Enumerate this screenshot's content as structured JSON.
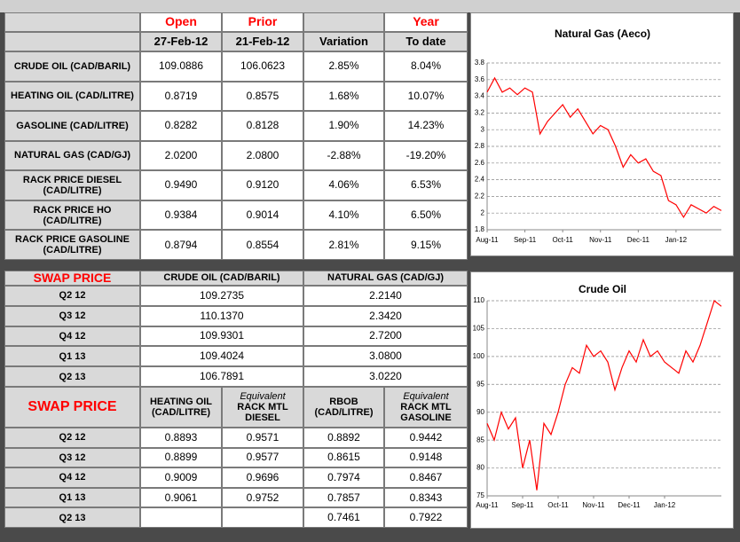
{
  "table": {
    "head_top": {
      "open": "Open",
      "prior": "Prior",
      "year": "Year"
    },
    "head_bottom": {
      "open": "27-Feb-12",
      "prior": "21-Feb-12",
      "variation": "Variation",
      "year": "To date"
    },
    "rows": [
      [
        "CRUDE OIL (CAD/BARIL)",
        "109.0886",
        "106.0623",
        "2.85%",
        "8.04%"
      ],
      [
        "HEATING OIL (CAD/LITRE)",
        "0.8719",
        "0.8575",
        "1.68%",
        "10.07%"
      ],
      [
        "GASOLINE (CAD/LITRE)",
        "0.8282",
        "0.8128",
        "1.90%",
        "14.23%"
      ],
      [
        "NATURAL GAS (CAD/GJ)",
        "2.0200",
        "2.0800",
        "-2.88%",
        "-19.20%"
      ],
      [
        "RACK PRICE DIESEL (CAD/LITRE)",
        "0.9490",
        "0.9120",
        "4.06%",
        "6.53%"
      ],
      [
        "RACK PRICE HO (CAD/LITRE)",
        "0.9384",
        "0.9014",
        "4.10%",
        "6.50%"
      ],
      [
        "RACK PRICE GASOLINE (CAD/LITRE)",
        "0.8794",
        "0.8554",
        "2.81%",
        "9.15%"
      ]
    ]
  },
  "swap_table": {
    "title": "SWAP PRICE",
    "columns": [
      "CRUDE OIL (CAD/BARIL)",
      "NATURAL GAS (CAD/GJ)"
    ],
    "rows": [
      [
        "Q2 12",
        "109.2735",
        "2.2140"
      ],
      [
        "Q3 12",
        "110.1370",
        "2.3420"
      ],
      [
        "Q4 12",
        "109.9301",
        "2.7200"
      ],
      [
        "Q1 13",
        "109.4024",
        "3.0800"
      ],
      [
        "Q2 13",
        "106.7891",
        "3.0220"
      ]
    ]
  },
  "swap_table_2": {
    "title": "SWAP PRICE",
    "columns": [
      {
        "label": "HEATING OIL (CAD/LITRE)"
      },
      {
        "note": "Equivalent",
        "label": "RACK MTL DIESEL"
      },
      {
        "label": "RBOB (CAD/LITRE)"
      },
      {
        "note": "Equivalent",
        "label": "RACK MTL GASOLINE"
      }
    ],
    "rows": [
      [
        "Q2 12",
        "0.8893",
        "0.9571",
        "0.8892",
        "0.9442"
      ],
      [
        "Q3 12",
        "0.8899",
        "0.9577",
        "0.8615",
        "0.9148"
      ],
      [
        "Q4 12",
        "0.9009",
        "0.9696",
        "0.7974",
        "0.8467"
      ],
      [
        "Q1 13",
        "0.9061",
        "0.9752",
        "0.7857",
        "0.8343"
      ],
      [
        "Q2 13",
        null,
        null,
        "0.7461",
        "0.7922"
      ]
    ]
  },
  "chart_data": [
    {
      "type": "line",
      "title": "Natural Gas (Aeco)",
      "categories": [
        "Aug-11",
        null,
        null,
        null,
        null,
        "Sep-11",
        null,
        null,
        null,
        null,
        "Oct-11",
        null,
        null,
        null,
        null,
        "Nov-11",
        null,
        null,
        null,
        null,
        "Dec-11",
        null,
        null,
        null,
        null,
        "Jan-12",
        null,
        null,
        null,
        null,
        null,
        null
      ],
      "values": [
        3.45,
        3.62,
        3.45,
        3.5,
        3.42,
        3.5,
        3.45,
        2.95,
        3.1,
        3.2,
        3.3,
        3.15,
        3.25,
        3.1,
        2.95,
        3.05,
        3.0,
        2.8,
        2.55,
        2.7,
        2.6,
        2.65,
        2.5,
        2.45,
        2.15,
        2.1,
        1.95,
        2.1,
        2.05,
        2.0,
        2.08,
        2.03
      ],
      "color": "#ff0000",
      "ylim": [
        1.8,
        3.8
      ],
      "yticks": [
        1.8,
        2,
        2.2,
        2.4,
        2.6,
        2.8,
        3,
        3.2,
        3.4,
        3.6,
        3.8
      ],
      "grid": true
    },
    {
      "type": "line",
      "title": "Crude Oil",
      "categories": [
        "Aug-11",
        null,
        null,
        null,
        null,
        "Sep-11",
        null,
        null,
        null,
        null,
        "Oct-11",
        null,
        null,
        null,
        null,
        "Nov-11",
        null,
        null,
        null,
        null,
        "Dec-11",
        null,
        null,
        null,
        null,
        "Jan-12",
        null,
        null,
        null,
        null,
        null,
        null,
        null,
        null
      ],
      "values": [
        88,
        85,
        90,
        87,
        89,
        80,
        85,
        76,
        88,
        86,
        90,
        95,
        98,
        97,
        102,
        100,
        101,
        99,
        94,
        98,
        101,
        99,
        103,
        100,
        101,
        99,
        98,
        97,
        101,
        99,
        102,
        106,
        110,
        109
      ],
      "color": "#ff0000",
      "ylim": [
        75,
        110
      ],
      "yticks": [
        75,
        80,
        85,
        90,
        95,
        100,
        105,
        110
      ],
      "grid": true
    }
  ]
}
